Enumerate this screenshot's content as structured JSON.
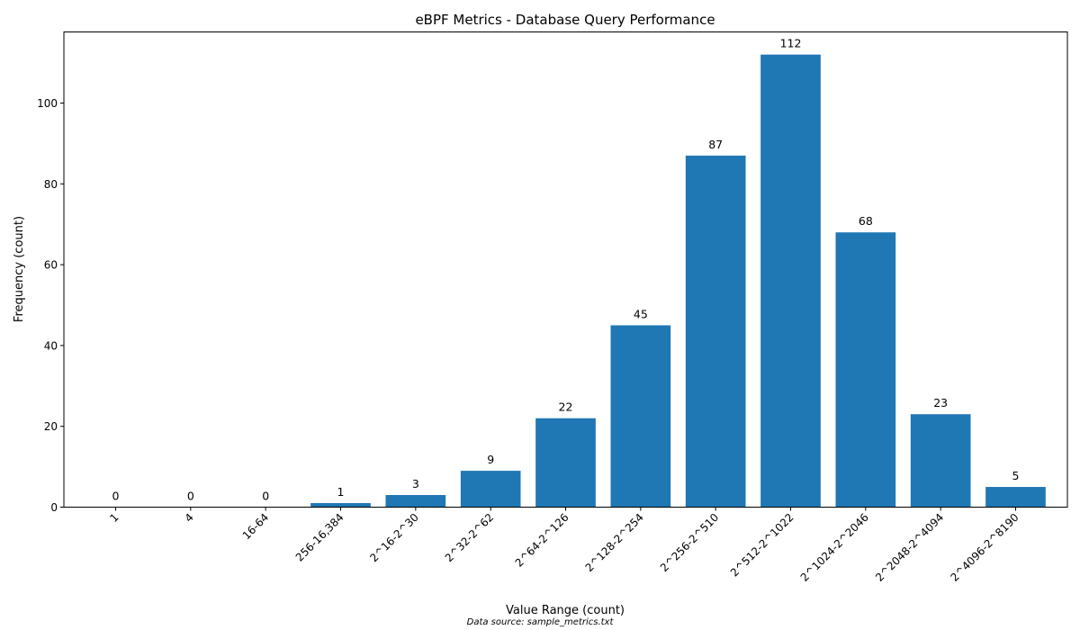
{
  "chart_data": {
    "type": "bar",
    "title": "eBPF Metrics - Database Query Performance",
    "xlabel": "Value Range (count)",
    "ylabel": "Frequency (count)",
    "categories": [
      "1",
      "4",
      "16-64",
      "256-16,384",
      "2^16-2^30",
      "2^32-2^62",
      "2^64-2^126",
      "2^128-2^254",
      "2^256-2^510",
      "2^512-2^1022",
      "2^1024-2^2046",
      "2^2048-2^4094",
      "2^4096-2^8190"
    ],
    "values": [
      0,
      0,
      0,
      1,
      3,
      9,
      22,
      45,
      87,
      112,
      68,
      23,
      5
    ],
    "data_labels": [
      "0",
      "0",
      "0",
      "1",
      "3",
      "9",
      "22",
      "45",
      "87",
      "112",
      "68",
      "23",
      "5"
    ],
    "ylim": [
      0,
      117.6
    ],
    "yticks": [
      0,
      20,
      40,
      60,
      80,
      100
    ],
    "bar_color": "#1f77b4",
    "grid": false,
    "footnote": "Data source: sample_metrics.txt"
  }
}
